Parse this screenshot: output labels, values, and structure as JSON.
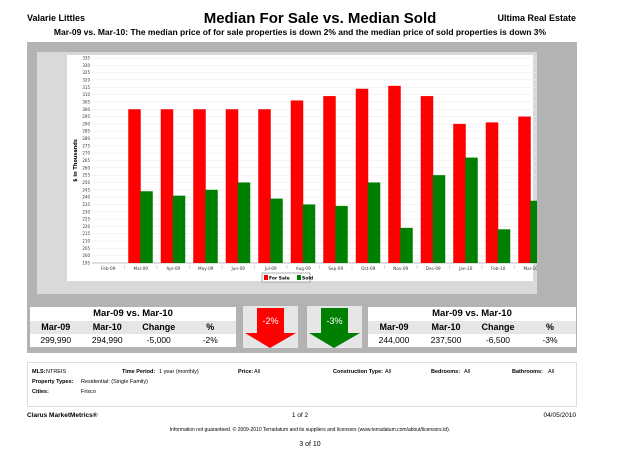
{
  "header": {
    "agent": "Valarie Littles",
    "title": "Median For Sale vs. Median Sold",
    "brand": "Ultima Real Estate",
    "subtitle": "Mar-09 vs. Mar-10:  The median price of for sale properties is down 2% and the median price of sold properties is down 3%"
  },
  "chart_data": {
    "type": "bar",
    "ylabel": "$ in Thousands",
    "ylim": [
      195,
      335
    ],
    "ytick_step": 5,
    "grid": true,
    "legend": "bottom-center",
    "categories": [
      "Feb-09",
      "Mar-09",
      "Apr-09",
      "May-09",
      "Jun-09",
      "Jul-09",
      "Aug-09",
      "Sep-09",
      "Oct-09",
      "Nov-09",
      "Dec-09",
      "Jan-10",
      "Feb-10",
      "Mar-10"
    ],
    "series": [
      {
        "name": "For Sale",
        "color": "#ff0000",
        "values": [
          null,
          300,
          300,
          300,
          300,
          300,
          306,
          309,
          314,
          316,
          309,
          290,
          291,
          295
        ]
      },
      {
        "name": "Sold",
        "color": "#008000",
        "values": [
          null,
          244,
          241,
          245,
          250,
          239,
          235,
          234,
          250,
          219,
          255,
          267,
          218,
          237.5
        ]
      }
    ]
  },
  "for_sale": {
    "heading": "Mar-09 vs. Mar-10",
    "cols": [
      "Mar-09",
      "Mar-10",
      "Change",
      "%"
    ],
    "values": [
      "299,990",
      "294,990",
      "-5,000",
      "-2%"
    ],
    "arrow": "-2%",
    "arrow_color": "#ff0000"
  },
  "sold": {
    "heading": "Mar-09 vs. Mar-10",
    "cols": [
      "Mar-09",
      "Mar-10",
      "Change",
      "%"
    ],
    "values": [
      "244,000",
      "237,500",
      "-6,500",
      "-3%"
    ],
    "arrow": "-3%",
    "arrow_color": "#008000"
  },
  "info": {
    "mls_l": "MLS:",
    "mls": "NTREIS",
    "tp_l": "Time Period:",
    "tp": "1 year (monthly)",
    "price_l": "Price:",
    "price": "All",
    "ct_l": "Construction Type:",
    "ct": "All",
    "bed_l": "Bedrooms:",
    "bed": "All",
    "bath_l": "Bathrooms:",
    "bath": "All",
    "pt_l": "Property Types:",
    "pt": "Residential: (Single Family)",
    "city_l": "Cities:",
    "city": "Frisco"
  },
  "footer": {
    "left": "Clarus MarketMetrics®",
    "center": "1 of 2",
    "date": "04/05/2010",
    "disclaimer": "Information not guaranteed.  © 2009-2010 Terradatum and its suppliers and licensors (www.terradatum.com/about/licensors.td).",
    "page": "3 of 10"
  }
}
